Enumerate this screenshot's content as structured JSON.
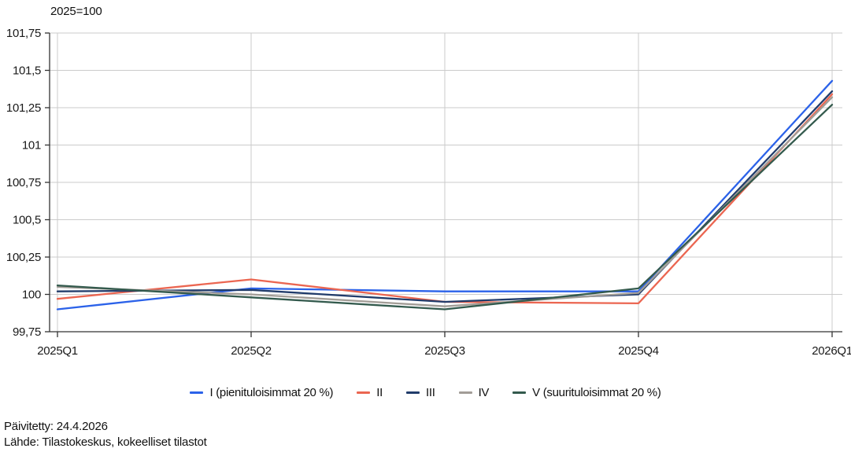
{
  "title": "2025=100",
  "footer": {
    "updated": "Päivitetty: 24.4.2026",
    "source": "Lähde: Tilastokeskus, kokeelliset tilastot"
  },
  "colors": {
    "background": "#ffffff",
    "grid": "#cbcbcb",
    "axis": "#333333",
    "text": "#1a1a1a"
  },
  "chart_data": {
    "type": "line",
    "title": "2025=100",
    "categories": [
      "2025Q1",
      "2025Q2",
      "2025Q3",
      "2025Q4",
      "2026Q1"
    ],
    "series": [
      {
        "key": "I",
        "name": "I (pienituloisimmat 20 %)",
        "color": "#2b62e9",
        "values": [
          99.9,
          100.04,
          100.02,
          100.02,
          101.43
        ]
      },
      {
        "key": "II",
        "name": "II",
        "color": "#eb6651",
        "values": [
          99.97,
          100.1,
          99.95,
          99.94,
          101.34
        ]
      },
      {
        "key": "III",
        "name": "III",
        "color": "#213c6b",
        "values": [
          100.02,
          100.03,
          99.95,
          100.0,
          101.36
        ]
      },
      {
        "key": "IV",
        "name": "IV",
        "color": "#a29d97",
        "values": [
          100.05,
          100.0,
          99.92,
          100.01,
          101.32
        ]
      },
      {
        "key": "V",
        "name": "V (suurituloisimmat 20 %)",
        "color": "#335a4d",
        "values": [
          100.06,
          99.98,
          99.9,
          100.04,
          101.27
        ]
      }
    ],
    "xlabel": "",
    "ylabel": "",
    "ylim": [
      99.75,
      101.75
    ],
    "ytick_step": 0.25,
    "ytick_labels": [
      "99,75",
      "100",
      "100,25",
      "100,5",
      "100,75",
      "101",
      "101,25",
      "101,5",
      "101,75"
    ],
    "grid": true,
    "legend_position": "bottom"
  }
}
